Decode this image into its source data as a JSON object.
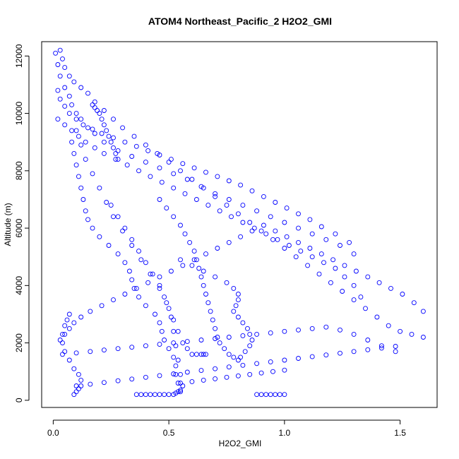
{
  "chart_data": {
    "type": "scatter",
    "title": "ATOM4 Northeast_Pacific_2 H2O2_GMI",
    "xlabel": "H2O2_GMI",
    "ylabel": "Altitude (m)",
    "xlim": [
      -0.05,
      1.66
    ],
    "ylim": [
      -250,
      12500
    ],
    "xticks": [
      0.0,
      0.5,
      1.0,
      1.5
    ],
    "xtick_labels": [
      "0.0",
      "0.5",
      "1.0",
      "1.5"
    ],
    "yticks": [
      0,
      2000,
      4000,
      6000,
      8000,
      10000,
      12000
    ],
    "ytick_labels": [
      "0",
      "2000",
      "4000",
      "6000",
      "8000",
      "10000",
      "12000"
    ],
    "grid": false,
    "marker_color": "#0000ff",
    "series": [
      {
        "x": [
          0.01,
          0.02,
          0.03,
          0.05,
          0.07,
          0.08,
          0.1,
          0.12,
          0.15,
          0.18,
          0.22,
          0.28,
          0.34,
          0.4,
          0.46,
          0.52,
          0.58,
          0.64,
          0.7,
          0.76,
          0.82,
          0.88,
          0.94,
          1.0,
          1.06,
          1.12,
          1.18,
          1.24,
          1.3
        ],
        "y": [
          12100,
          11700,
          11300,
          10900,
          10600,
          10300,
          10000,
          9800,
          9500,
          9300,
          9000,
          8700,
          8500,
          8300,
          8100,
          7900,
          7700,
          7450,
          7200,
          7000,
          6800,
          6600,
          6400,
          6200,
          6000,
          5800,
          5600,
          5400,
          5100
        ]
      },
      {
        "x": [
          0.02,
          0.03,
          0.05,
          0.07,
          0.1,
          0.13,
          0.17,
          0.21,
          0.26,
          0.31,
          0.36,
          0.41,
          0.46,
          0.51,
          0.56,
          0.61,
          0.66,
          0.71,
          0.76,
          0.81,
          0.86,
          0.91,
          0.96,
          1.01,
          1.06,
          1.11,
          1.16,
          1.22,
          1.28
        ],
        "y": [
          10800,
          10500,
          10250,
          10000,
          9800,
          9600,
          9450,
          9300,
          9150,
          9000,
          8850,
          8700,
          8550,
          8400,
          8250,
          8100,
          7950,
          7800,
          7650,
          7500,
          7300,
          7100,
          6900,
          6700,
          6500,
          6300,
          6050,
          5800,
          5500
        ]
      },
      {
        "x": [
          0.03,
          0.04,
          0.05,
          0.07,
          0.09,
          0.12,
          0.15,
          0.18,
          0.22,
          0.26,
          0.3,
          0.35,
          0.4,
          0.45,
          0.5,
          0.55,
          0.6,
          0.65,
          0.7,
          0.75,
          0.8,
          0.85,
          0.9,
          0.95,
          1.0,
          1.05,
          1.1,
          1.15,
          1.2,
          1.25,
          1.3,
          1.35,
          1.4,
          1.45,
          1.5,
          1.55,
          1.6
        ],
        "y": [
          12200,
          11900,
          11600,
          11300,
          11100,
          10900,
          10700,
          10400,
          10100,
          9800,
          9500,
          9200,
          8900,
          8600,
          8300,
          8000,
          7700,
          7400,
          7100,
          6800,
          6500,
          6200,
          5900,
          5600,
          5300,
          5000,
          4700,
          4400,
          4100,
          3800,
          3500,
          3200,
          2900,
          2600,
          2400,
          2300,
          2200
        ]
      },
      {
        "x": [
          0.02,
          0.05,
          0.08,
          0.11,
          0.14,
          0.18,
          0.22,
          0.27,
          0.32,
          0.37,
          0.42,
          0.47,
          0.52,
          0.57,
          0.62,
          0.67,
          0.72,
          0.77,
          0.82,
          0.87,
          0.92,
          0.97,
          1.02,
          1.07,
          1.12,
          1.17,
          1.22,
          1.26,
          1.3,
          1.33
        ],
        "y": [
          9800,
          9600,
          9400,
          9200,
          9000,
          8800,
          8600,
          8400,
          8200,
          8000,
          7800,
          7600,
          7400,
          7200,
          7000,
          6800,
          6600,
          6400,
          6200,
          6000,
          5800,
          5600,
          5400,
          5200,
          5000,
          4800,
          4600,
          4300,
          4000,
          3600
        ]
      },
      {
        "x": [
          0.08,
          0.09,
          0.1,
          0.11,
          0.12,
          0.13,
          0.14,
          0.15,
          0.17,
          0.2,
          0.24,
          0.28,
          0.31,
          0.33,
          0.34,
          0.35,
          0.37,
          0.4,
          0.44,
          0.46,
          0.47,
          0.48,
          0.5,
          0.52,
          0.53,
          0.53,
          0.54,
          0.55
        ],
        "y": [
          9000,
          8600,
          8200,
          7800,
          7400,
          7000,
          6600,
          6300,
          6000,
          5700,
          5400,
          5100,
          4800,
          4500,
          4200,
          3900,
          3600,
          3300,
          3000,
          2700,
          2400,
          2100,
          1800,
          1500,
          1200,
          900,
          600,
          300
        ]
      },
      {
        "x": [
          0.1,
          0.12,
          0.14,
          0.17,
          0.2,
          0.23,
          0.26,
          0.3,
          0.34,
          0.38,
          0.42,
          0.46,
          0.49,
          0.51,
          0.52,
          0.53,
          0.54,
          0.55,
          0.56
        ],
        "y": [
          9400,
          8900,
          8400,
          7900,
          7400,
          6900,
          6400,
          5900,
          5400,
          4900,
          4400,
          3900,
          3400,
          2900,
          2400,
          1900,
          1400,
          900,
          500
        ]
      },
      {
        "x": [
          0.07,
          0.06,
          0.05,
          0.04,
          0.04,
          0.05,
          0.07,
          0.09,
          0.11,
          0.12,
          0.12,
          0.11,
          0.1,
          0.09
        ],
        "y": [
          3000,
          2800,
          2600,
          2300,
          2000,
          1700,
          1400,
          1100,
          900,
          700,
          500,
          400,
          300,
          200
        ]
      },
      {
        "x": [
          0.03,
          0.05,
          0.07,
          0.09,
          0.12,
          0.16,
          0.21,
          0.26,
          0.31,
          0.36,
          0.41,
          0.46,
          0.51,
          0.56,
          0.61,
          0.66,
          0.71,
          0.76,
          0.81,
          0.86,
          0.91,
          0.96,
          1.01,
          1.06,
          1.11,
          1.16,
          1.21,
          1.26,
          1.31,
          1.36,
          1.41,
          1.46,
          1.51,
          1.56,
          1.6
        ],
        "y": [
          2100,
          2300,
          2500,
          2700,
          2900,
          3100,
          3300,
          3500,
          3700,
          3900,
          4100,
          4300,
          4500,
          4700,
          4900,
          5100,
          5300,
          5500,
          5700,
          5900,
          6100,
          5900,
          5700,
          5500,
          5300,
          5100,
          4900,
          4700,
          4500,
          4300,
          4100,
          3900,
          3700,
          3400,
          3100
        ]
      },
      {
        "x": [
          0.55,
          0.6,
          0.65,
          0.7,
          0.75,
          0.78,
          0.8,
          0.8,
          0.79,
          0.78,
          0.8,
          0.82,
          0.84,
          0.85,
          0.86,
          0.85,
          0.83,
          0.81,
          0.8
        ],
        "y": [
          4900,
          4700,
          4500,
          4300,
          4100,
          3900,
          3700,
          3500,
          3300,
          3100,
          2900,
          2700,
          2500,
          2300,
          2100,
          1900,
          1700,
          1500,
          1400
        ]
      },
      {
        "x": [
          0.25,
          0.28,
          0.31,
          0.34,
          0.37,
          0.4,
          0.43,
          0.46,
          0.48,
          0.5,
          0.52,
          0.54,
          0.56,
          0.58,
          0.6,
          0.62,
          0.64,
          0.65,
          0.66
        ],
        "y": [
          6800,
          6400,
          6000,
          5600,
          5200,
          4800,
          4400,
          4000,
          3600,
          3200,
          2800,
          2400,
          2000,
          1800,
          1600,
          1600,
          1600,
          1600,
          1600
        ]
      },
      {
        "x": [
          0.46,
          0.49,
          0.52,
          0.55,
          0.57,
          0.59,
          0.61,
          0.62,
          0.63,
          0.64,
          0.65,
          0.66,
          0.67,
          0.68,
          0.69,
          0.7,
          0.71,
          0.72,
          0.74,
          0.76,
          0.78
        ],
        "y": [
          7000,
          6700,
          6400,
          6100,
          5800,
          5500,
          5200,
          4900,
          4600,
          4300,
          4000,
          3700,
          3400,
          3100,
          2800,
          2500,
          2200,
          2000,
          1800,
          1600,
          1500
        ]
      },
      {
        "x": [
          0.04,
          0.1,
          0.16,
          0.22,
          0.28,
          0.34,
          0.4,
          0.46,
          0.52,
          0.58,
          0.64,
          0.7,
          0.76,
          0.82,
          0.88,
          0.94,
          1.0,
          1.06,
          1.12,
          1.18,
          1.24,
          1.3,
          1.36,
          1.42,
          1.48
        ],
        "y": [
          1600,
          1650,
          1700,
          1750,
          1800,
          1850,
          1900,
          1950,
          2000,
          2050,
          2100,
          2150,
          2200,
          2250,
          2300,
          2350,
          2400,
          2450,
          2500,
          2550,
          2450,
          2300,
          2100,
          1900,
          1700
        ]
      },
      {
        "x": [
          0.1,
          0.16,
          0.22,
          0.28,
          0.34,
          0.4,
          0.46,
          0.52,
          0.58,
          0.64,
          0.7,
          0.76,
          0.82,
          0.88,
          0.94,
          1.0,
          1.06,
          1.12,
          1.18,
          1.24,
          1.3,
          1.36,
          1.42,
          1.48
        ],
        "y": [
          500,
          560,
          620,
          680,
          740,
          800,
          860,
          920,
          980,
          1040,
          1100,
          1160,
          1220,
          1280,
          1340,
          1400,
          1460,
          1520,
          1580,
          1640,
          1700,
          1760,
          1820,
          1880
        ]
      },
      {
        "x": [
          0.36,
          0.38,
          0.4,
          0.42,
          0.44,
          0.46,
          0.48,
          0.5,
          0.52,
          0.53,
          0.54,
          0.55
        ],
        "y": [
          200,
          200,
          200,
          200,
          200,
          200,
          200,
          200,
          200,
          250,
          300,
          350
        ]
      },
      {
        "x": [
          0.88,
          0.9,
          0.92,
          0.94,
          0.96,
          0.98,
          1.0
        ],
        "y": [
          200,
          200,
          200,
          200,
          200,
          200,
          200
        ]
      },
      {
        "x": [
          0.55,
          0.6,
          0.65,
          0.7,
          0.75,
          0.8,
          0.85,
          0.9,
          0.95,
          1.0
        ],
        "y": [
          600,
          650,
          700,
          750,
          800,
          850,
          900,
          950,
          1000,
          1050
        ]
      },
      {
        "x": [
          0.17,
          0.18,
          0.19,
          0.2,
          0.21,
          0.22,
          0.23,
          0.24,
          0.25,
          0.26,
          0.27,
          0.28
        ],
        "y": [
          10300,
          10200,
          10100,
          10000,
          9800,
          9600,
          9400,
          9200,
          9000,
          8800,
          8600,
          8400
        ]
      }
    ]
  }
}
